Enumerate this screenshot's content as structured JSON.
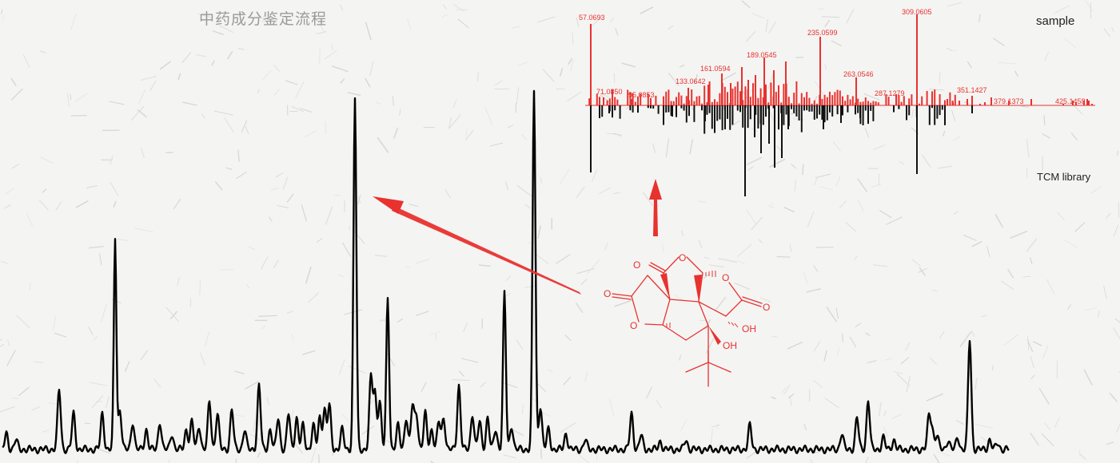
{
  "page_title": "中药成分鉴定流程",
  "mirror_spectrum": {
    "top_label": "sample",
    "bottom_label": "TCM library",
    "colors": {
      "sample": "#e8322e",
      "library": "#111111"
    },
    "peaks": [
      {
        "mz": 57.0693,
        "label": "57.0693"
      },
      {
        "mz": 71.085,
        "label": "71.0850"
      },
      {
        "mz": 95.0853,
        "label": "95.0853"
      },
      {
        "mz": 133.0642,
        "label": "133.0642"
      },
      {
        "mz": 161.0594,
        "label": "161.0594"
      },
      {
        "mz": 189.0545,
        "label": "189.0545"
      },
      {
        "mz": 235.0599,
        "label": "235.0599"
      },
      {
        "mz": 263.0546,
        "label": "263.0546"
      },
      {
        "mz": 287.1279,
        "label": "287.1279"
      },
      {
        "mz": 309.0605,
        "label": "309.0605"
      },
      {
        "mz": 351.1427,
        "label": "351.1427"
      },
      {
        "mz": 379.1373,
        "label": "379.1373"
      },
      {
        "mz": 425.1458,
        "label": "425.1458"
      }
    ]
  },
  "structure": {
    "atom_labels": [
      "O",
      "O",
      "O",
      "O",
      "O",
      "O",
      "OH",
      "OH"
    ],
    "color": "#e8322e"
  },
  "arrows": {
    "color": "#e8322e"
  },
  "chromatogram": {
    "color": "#000000"
  }
}
